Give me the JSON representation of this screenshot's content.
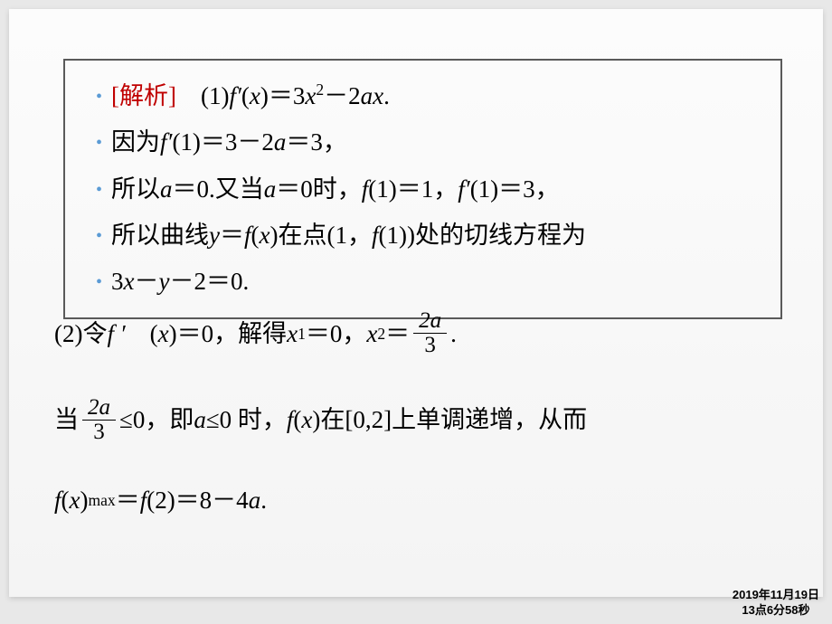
{
  "box": {
    "analysis_label": "[解析]",
    "line1_after": "　(1)",
    "line1_math_a": "f′",
    "line1_math_b": "(",
    "line1_math_c": "x",
    "line1_math_d": ")＝3",
    "line1_math_e": "x",
    "line1_math_f": "2",
    "line1_math_g": "－2",
    "line1_math_h": "ax",
    "line1_math_i": ".",
    "line2_a": "因为",
    "line2_b": "f′",
    "line2_c": "(1)＝3－2",
    "line2_d": "a",
    "line2_e": "＝3，",
    "line3_a": "所以",
    "line3_b": "a",
    "line3_c": "＝0.又当",
    "line3_d": "a",
    "line3_e": "＝0时，",
    "line3_f": "f",
    "line3_g": "(1)＝1，",
    "line3_h": "f′",
    "line3_i": "(1)＝3，",
    "line4_a": "所以曲线",
    "line4_b": "y",
    "line4_c": "＝",
    "line4_d": "f",
    "line4_e": "(",
    "line4_f": "x",
    "line4_g": ")在点(1，",
    "line4_h": "f",
    "line4_i": "(1))处的切线方程为",
    "line5_a": "3",
    "line5_b": "x",
    "line5_c": "－",
    "line5_d": "y",
    "line5_e": "－2＝0."
  },
  "lower": {
    "row1_a": "(2)令 ",
    "row1_b": "f ′",
    "row1_c": "　(",
    "row1_d": "x",
    "row1_e": ")＝0，解得 ",
    "row1_f": "x",
    "row1_g": "1",
    "row1_h": "＝0，",
    "row1_i": "x",
    "row1_j": "2",
    "row1_k": "＝",
    "frac1_num": "2a",
    "frac1_den": "3",
    "row1_end": ".",
    "row2_a": "当",
    "frac2_num": "2a",
    "frac2_den": "3",
    "row2_b": "≤0，即 ",
    "row2_c": "a",
    "row2_d": "≤0 时，",
    "row2_e": "f",
    "row2_f": "(",
    "row2_g": "x",
    "row2_h": ")在[0,2]上单调递增，从而",
    "row3_a": "f",
    "row3_b": "(",
    "row3_c": "x",
    "row3_d": ")",
    "row3_e": "max",
    "row3_f": "＝",
    "row3_g": "f",
    "row3_h": "(2)＝8－4",
    "row3_i": "a",
    "row3_j": "."
  },
  "footer": {
    "date": "2019年11月19日",
    "time": "13点6分58秒"
  },
  "colors": {
    "analysis_label": "#c00000",
    "bullet": "#5b9bd5",
    "border": "#5a5a5a",
    "bg": "#e8e8e8"
  }
}
